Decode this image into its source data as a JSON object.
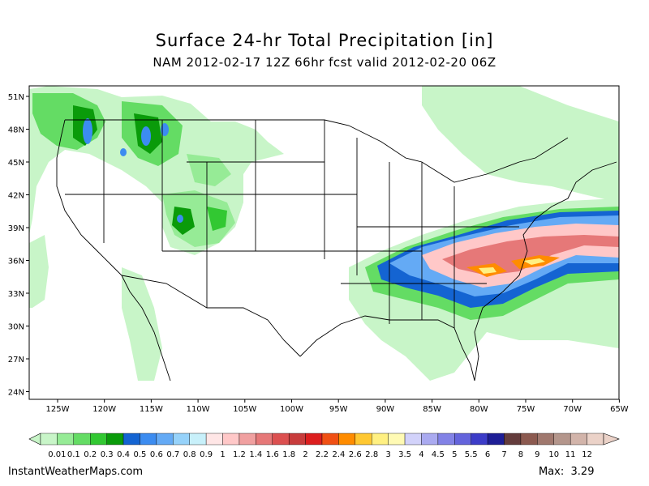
{
  "title": "Surface 24-hr Total Precipitation [in]",
  "subtitle": "NAM 2012-02-17 12Z 66hr fcst valid 2012-02-20 06Z",
  "lat_labels": [
    "51N",
    "48N",
    "45N",
    "42N",
    "39N",
    "36N",
    "33N",
    "30N",
    "27N",
    "24N"
  ],
  "lon_labels": [
    "125W",
    "120W",
    "115W",
    "110W",
    "105W",
    "100W",
    "95W",
    "90W",
    "85W",
    "80W",
    "75W",
    "70W",
    "65W"
  ],
  "legend": {
    "labels": [
      "0.01",
      "0.1",
      "0.2",
      "0.3",
      "0.4",
      "0.5",
      "0.6",
      "0.7",
      "0.8",
      "0.9",
      "1",
      "1.2",
      "1.4",
      "1.6",
      "1.8",
      "2",
      "2.2",
      "2.4",
      "2.6",
      "2.8",
      "3",
      "3.5",
      "4",
      "4.5",
      "5",
      "5.5",
      "6",
      "7",
      "8",
      "9",
      "10",
      "11",
      "12"
    ],
    "colors": [
      "#c8f5c8",
      "#96eb96",
      "#64dc64",
      "#32c832",
      "#0a9b0a",
      "#1464d2",
      "#3c8cf0",
      "#64aaf5",
      "#96d2fa",
      "#c8f0fa",
      "#ffe6e6",
      "#ffc8c8",
      "#f0a0a0",
      "#e67878",
      "#dc5050",
      "#c83c3c",
      "#dc1e1e",
      "#f05014",
      "#ff8c00",
      "#ffc832",
      "#fff082",
      "#fffab4",
      "#d2d2fa",
      "#aaaaf0",
      "#8282e6",
      "#6464dc",
      "#3c3cc8",
      "#1e1e96",
      "#643c3c",
      "#8c5a50",
      "#a0786e",
      "#b4968c",
      "#d2b4aa",
      "#ebd2c8"
    ]
  },
  "footer": {
    "source": "InstantWeatherMaps.com",
    "max_label": "Max:",
    "max_value": "3.29"
  },
  "precip_regions": [
    {
      "level": "0.01",
      "description": "Pacific Northwest and northern Rockies light precipitation"
    },
    {
      "level": "0.5",
      "description": "Washington Cascades / Idaho mountains"
    },
    {
      "level": "1",
      "description": "Mid-Atlantic / Carolinas band"
    },
    {
      "level": "2",
      "description": "North Carolina / Virginia maximum"
    }
  ]
}
